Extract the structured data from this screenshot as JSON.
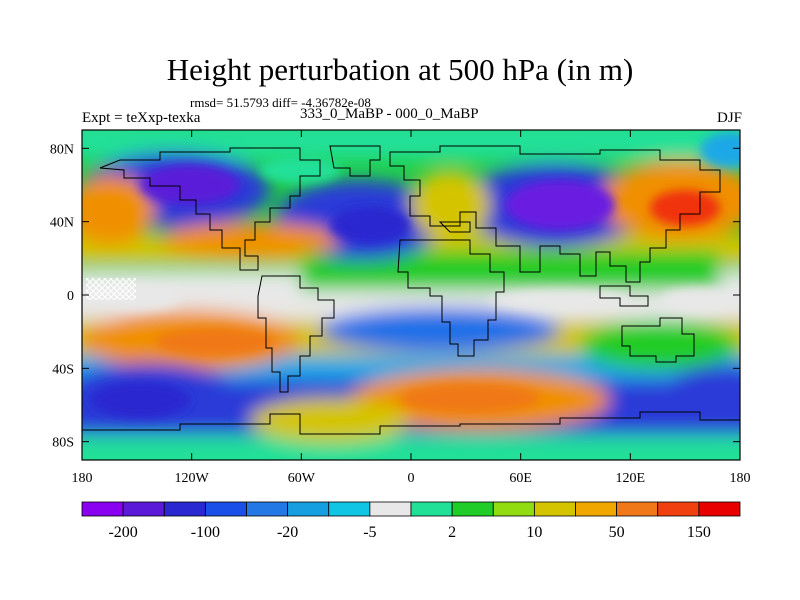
{
  "header": {
    "title": "Height perturbation at 500 hPa (in m)",
    "stats": "rmsd= 51.5793 diff= -4.36782e-08",
    "left_label": "Expt = teXxp-texka",
    "center_label": "333_0_MaBP - 000_0_MaBP",
    "right_label": "DJF"
  },
  "axes": {
    "x_ticks": [
      "180",
      "120W",
      "60W",
      "0",
      "60E",
      "120E",
      "180"
    ],
    "x_values": [
      -180,
      -120,
      -60,
      0,
      60,
      120,
      180
    ],
    "y_ticks": [
      "80N",
      "40N",
      "0",
      "40S",
      "80S"
    ],
    "y_values": [
      80,
      40,
      0,
      -40,
      -80
    ],
    "lon_range": [
      -180,
      180
    ],
    "lat_range": [
      -90,
      90
    ]
  },
  "colorbar": {
    "colors": [
      "#8a00f0",
      "#5a1ad8",
      "#2a28d0",
      "#1a50e8",
      "#2378e6",
      "#159ee0",
      "#10c4e4",
      "#e8e8e8",
      "#20e098",
      "#20cc28",
      "#90dc10",
      "#d4c400",
      "#f0a800",
      "#f07818",
      "#f04010",
      "#e80000"
    ],
    "labels": [
      "-200",
      "-100",
      "-20",
      "-5",
      "2",
      "10",
      "50",
      "150"
    ],
    "label_boundaries": [
      1,
      3,
      5,
      7,
      9,
      11,
      13,
      15
    ]
  },
  "field_colors": {
    "deep_low": "#6a1fe0",
    "low": "#2a3ad8",
    "mid_low": "#1e70e8",
    "weak_low": "#1aa8e6",
    "neutral": "#e8e8e8",
    "weak_high": "#20e098",
    "mid_high": "#d4c400",
    "high": "#f09000",
    "strong_high": "#f03010",
    "coast": "#000000"
  }
}
